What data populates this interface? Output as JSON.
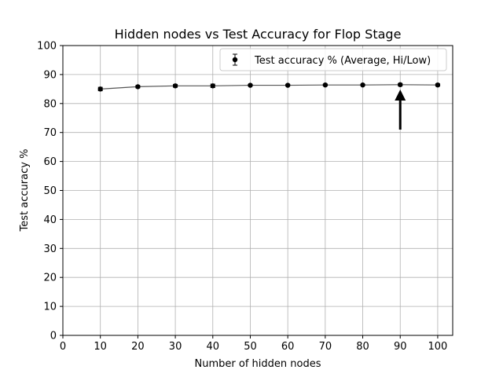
{
  "chart_data": {
    "type": "line",
    "title": "Hidden nodes vs Test Accuracy for Flop Stage",
    "xlabel": "Number of hidden nodes",
    "ylabel": "Test accuracy %",
    "xlim": [
      0,
      104
    ],
    "ylim": [
      0,
      100
    ],
    "xticks": [
      0,
      10,
      20,
      30,
      40,
      50,
      60,
      70,
      80,
      90,
      100
    ],
    "yticks": [
      0,
      10,
      20,
      30,
      40,
      50,
      60,
      70,
      80,
      90,
      100
    ],
    "grid": true,
    "legend": {
      "placement": "top-right",
      "entries": [
        "Test accuracy % (Average, Hi/Low)"
      ]
    },
    "series": [
      {
        "name": "Test accuracy % (Average, Hi/Low)",
        "x": [
          10,
          20,
          30,
          40,
          50,
          60,
          70,
          80,
          90,
          100
        ],
        "y": [
          85.0,
          85.8,
          86.1,
          86.1,
          86.3,
          86.3,
          86.4,
          86.4,
          86.5,
          86.4
        ],
        "y_low": [
          84.4,
          85.4,
          85.6,
          85.5,
          86.0,
          86.0,
          86.1,
          86.2,
          86.1,
          86.0
        ],
        "y_high": [
          85.6,
          86.2,
          86.6,
          86.7,
          86.6,
          86.6,
          86.7,
          86.6,
          86.9,
          86.8
        ],
        "marker_color": "#000000",
        "line_color": "#555555"
      }
    ],
    "annotation": {
      "type": "arrow",
      "x": 90,
      "y_tail": 71,
      "y_head": 84
    }
  }
}
